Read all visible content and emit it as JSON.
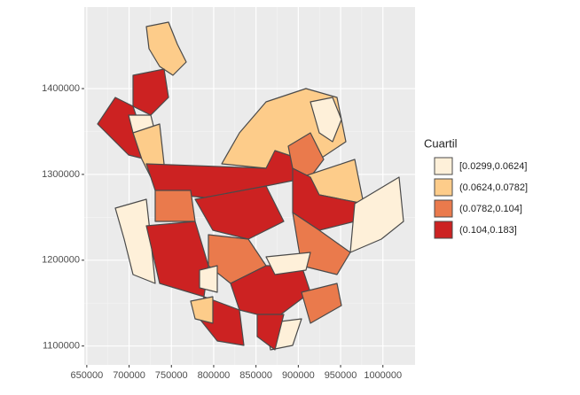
{
  "chart_data": {
    "type": "choropleth",
    "xlim": [
      647000,
      1038000
    ],
    "ylim": [
      1078000,
      1495000
    ],
    "xticks": [
      650000,
      700000,
      750000,
      800000,
      850000,
      900000,
      950000,
      1000000
    ],
    "yticks": [
      1100000,
      1200000,
      1300000,
      1400000
    ],
    "grid": true,
    "legend": {
      "title": "Cuartil",
      "labels": [
        "[0.0299,0.0624]",
        "(0.0624,0.0782]",
        "(0.0782,0.104]",
        "(0.104,0.183]"
      ],
      "colors": [
        "#fef0d9",
        "#fdcc8a",
        "#ea7a4c",
        "#cc2222"
      ]
    }
  }
}
